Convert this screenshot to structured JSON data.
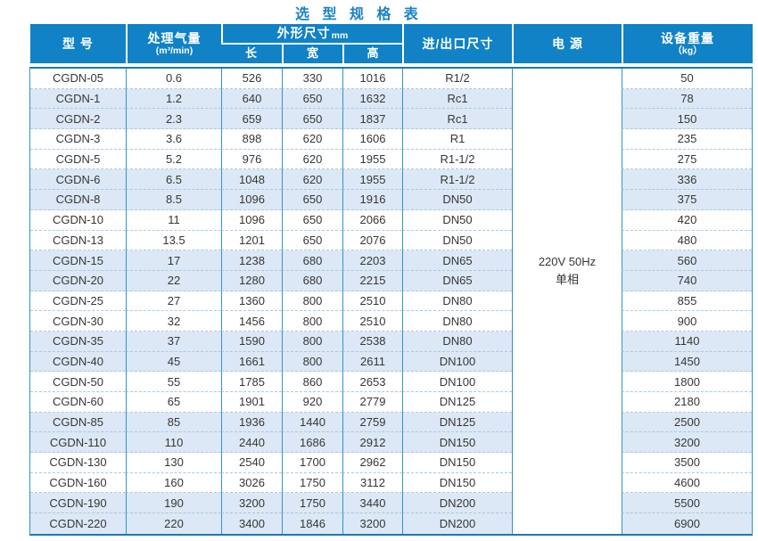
{
  "title": "选 型 规 格 表",
  "colors": {
    "header_bg": "#1082c5",
    "title_text": "#1a82c4",
    "stripe_row": "#dce8f5",
    "grid_line": "#3094cc",
    "dashed_line": "#a9c9e2",
    "outer_border": "#1d77b5"
  },
  "table": {
    "headers": {
      "model": "型 号",
      "airflow": "处理气量",
      "airflow_unit": "(m³/min)",
      "dims": "外形尺寸",
      "dims_unit": "mm",
      "length": "长",
      "width": "宽",
      "height": "高",
      "port": "进/出口尺寸",
      "power": "电 源",
      "weight": "设备重量",
      "weight_unit": "（kg）"
    },
    "power_value": [
      "220V 50Hz",
      "单相"
    ],
    "rows": [
      [
        "CGDN-05",
        "0.6",
        "526",
        "330",
        "1016",
        "R1/2",
        "50"
      ],
      [
        "CGDN-1",
        "1.2",
        "640",
        "650",
        "1632",
        "Rc1",
        "78"
      ],
      [
        "CGDN-2",
        "2.3",
        "659",
        "650",
        "1837",
        "Rc1",
        "150"
      ],
      [
        "CGDN-3",
        "3.6",
        "898",
        "620",
        "1606",
        "R1",
        "235"
      ],
      [
        "CGDN-5",
        "5.2",
        "976",
        "620",
        "1955",
        "R1-1/2",
        "275"
      ],
      [
        "CGDN-6",
        "6.5",
        "1048",
        "620",
        "1955",
        "R1-1/2",
        "336"
      ],
      [
        "CGDN-8",
        "8.5",
        "1096",
        "650",
        "1916",
        "DN50",
        "375"
      ],
      [
        "CGDN-10",
        "11",
        "1096",
        "650",
        "2066",
        "DN50",
        "420"
      ],
      [
        "CGDN-13",
        "13.5",
        "1201",
        "650",
        "2076",
        "DN50",
        "480"
      ],
      [
        "CGDN-15",
        "17",
        "1238",
        "680",
        "2203",
        "DN65",
        "560"
      ],
      [
        "CGDN-20",
        "22",
        "1280",
        "680",
        "2215",
        "DN65",
        "740"
      ],
      [
        "CGDN-25",
        "27",
        "1360",
        "800",
        "2510",
        "DN80",
        "855"
      ],
      [
        "CGDN-30",
        "32",
        "1456",
        "800",
        "2510",
        "DN80",
        "900"
      ],
      [
        "CGDN-35",
        "37",
        "1590",
        "800",
        "2538",
        "DN80",
        "1140"
      ],
      [
        "CGDN-40",
        "45",
        "1661",
        "800",
        "2611",
        "DN100",
        "1450"
      ],
      [
        "CGDN-50",
        "55",
        "1785",
        "860",
        "2653",
        "DN100",
        "1800"
      ],
      [
        "CGDN-60",
        "65",
        "1901",
        "920",
        "2779",
        "DN125",
        "2180"
      ],
      [
        "CGDN-85",
        "85",
        "1936",
        "1440",
        "2759",
        "DN125",
        "2500"
      ],
      [
        "CGDN-110",
        "110",
        "2440",
        "1686",
        "2912",
        "DN150",
        "3200"
      ],
      [
        "CGDN-130",
        "130",
        "2540",
        "1700",
        "2962",
        "DN150",
        "3500"
      ],
      [
        "CGDN-160",
        "160",
        "3026",
        "1750",
        "3112",
        "DN150",
        "4600"
      ],
      [
        "CGDN-190",
        "190",
        "3200",
        "1750",
        "3440",
        "DN200",
        "5500"
      ],
      [
        "CGDN-220",
        "220",
        "3400",
        "1846",
        "3200",
        "DN200",
        "6900"
      ]
    ]
  }
}
